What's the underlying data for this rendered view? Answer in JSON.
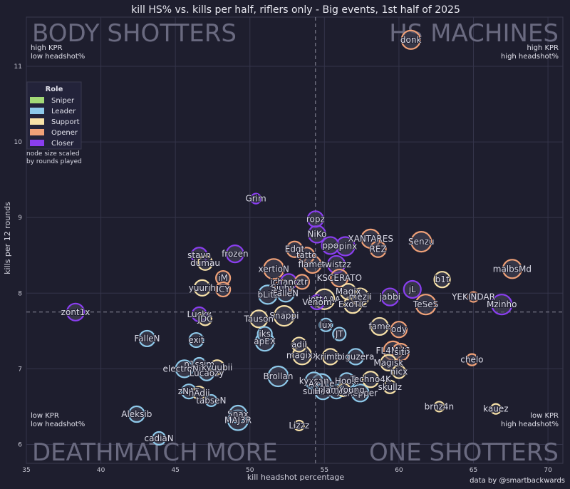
{
  "chart_data": {
    "type": "scatter",
    "title": "kill HS% vs. kills per half, riflers only - Big events, 1st half of 2025",
    "xlabel": "kill headshot percentage",
    "ylabel": "kills per 12 rounds",
    "xlim": [
      35,
      71
    ],
    "ylim": [
      5.75,
      11.65
    ],
    "xticks": [
      35,
      40,
      45,
      50,
      55,
      60,
      65,
      70
    ],
    "yticks": [
      6,
      7,
      8,
      9,
      10,
      11
    ],
    "mean_x": 54.4,
    "mean_y": 7.75,
    "grid": true,
    "quadrants": [
      {
        "big": "BODY SHOTTERS",
        "sub1": "high KPR",
        "sub2": "low headshot%"
      },
      {
        "big": "HS MACHINES",
        "sub1": "high KPR",
        "sub2": "high headshot%"
      },
      {
        "big": "DEATHMATCH MORE",
        "sub1": "low KPR",
        "sub2": "low headshot%"
      },
      {
        "big": "ONE SHOTTERS",
        "sub1": "low KPR",
        "sub2": "high headshot%"
      }
    ],
    "legend": {
      "title": "Role",
      "placement": "upper-left",
      "note1": "node size scaled",
      "note2": "by rounds played",
      "entries": [
        {
          "name": "Sniper",
          "color": "#a3d977"
        },
        {
          "name": "Leader",
          "color": "#8ec9ea"
        },
        {
          "name": "Support",
          "color": "#f7e1a8"
        },
        {
          "name": "Opener",
          "color": "#f0a178"
        },
        {
          "name": "Closer",
          "color": "#8a3ef0"
        }
      ]
    },
    "credit": "data by @smartbackwards",
    "points": [
      {
        "name": "donk",
        "x": 60.8,
        "y": 11.35,
        "role": "Opener",
        "size": 13
      },
      {
        "name": "Grim",
        "x": 50.4,
        "y": 9.25,
        "role": "Closer",
        "size": 7
      },
      {
        "name": "ropz",
        "x": 54.4,
        "y": 8.98,
        "role": "Closer",
        "size": 11
      },
      {
        "name": "NiKo",
        "x": 54.5,
        "y": 8.78,
        "role": "Closer",
        "size": 12
      },
      {
        "name": "XANTARES",
        "x": 58.1,
        "y": 8.72,
        "role": "Opener",
        "size": 13
      },
      {
        "name": "Senzu",
        "x": 61.5,
        "y": 8.68,
        "role": "Opener",
        "size": 14
      },
      {
        "name": "Spinx",
        "x": 56.4,
        "y": 8.62,
        "role": "Closer",
        "size": 13
      },
      {
        "name": "ppo",
        "x": 55.4,
        "y": 8.63,
        "role": "Closer",
        "size": 12
      },
      {
        "name": "REZ",
        "x": 58.6,
        "y": 8.58,
        "role": "Opener",
        "size": 11
      },
      {
        "name": "Edgt",
        "x": 53.0,
        "y": 8.58,
        "role": "Opener",
        "size": 11
      },
      {
        "name": "frozen",
        "x": 49.0,
        "y": 8.52,
        "role": "Closer",
        "size": 12
      },
      {
        "name": "stavn",
        "x": 46.6,
        "y": 8.5,
        "role": "Closer",
        "size": 11
      },
      {
        "name": "tatto",
        "x": 53.8,
        "y": 8.5,
        "role": "Opener",
        "size": 11
      },
      {
        "name": "dumau",
        "x": 47.0,
        "y": 8.4,
        "role": "Support",
        "size": 10
      },
      {
        "name": "flamez",
        "x": 54.2,
        "y": 8.38,
        "role": "Opener",
        "size": 12
      },
      {
        "name": "twistzz",
        "x": 55.8,
        "y": 8.38,
        "role": "Closer",
        "size": 12
      },
      {
        "name": "xertioN",
        "x": 51.6,
        "y": 8.32,
        "role": "Opener",
        "size": 14
      },
      {
        "name": "malbsMd",
        "x": 67.6,
        "y": 8.32,
        "role": "Opener",
        "size": 13
      },
      {
        "name": "KSCERATO",
        "x": 56.0,
        "y": 8.2,
        "role": "Opener",
        "size": 12
      },
      {
        "name": "iM",
        "x": 48.2,
        "y": 8.2,
        "role": "Opener",
        "size": 10
      },
      {
        "name": "b1t",
        "x": 62.9,
        "y": 8.18,
        "role": "Support",
        "size": 11
      },
      {
        "name": "jchancer",
        "x": 52.6,
        "y": 8.15,
        "role": "Closer",
        "size": 11
      },
      {
        "name": "ztr",
        "x": 53.5,
        "y": 8.15,
        "role": "Opener",
        "size": 10
      },
      {
        "name": "yuurih",
        "x": 46.8,
        "y": 8.07,
        "role": "Support",
        "size": 11
      },
      {
        "name": "ICY",
        "x": 48.2,
        "y": 8.05,
        "role": "Opener",
        "size": 10
      },
      {
        "name": "Siuhy",
        "x": 52.2,
        "y": 8.07,
        "role": "Opener",
        "size": 11
      },
      {
        "name": "jL",
        "x": 60.9,
        "y": 8.05,
        "role": "Closer",
        "size": 12
      },
      {
        "name": "Magix",
        "x": 56.6,
        "y": 8.02,
        "role": "Support",
        "size": 11
      },
      {
        "name": "bLitz",
        "x": 51.2,
        "y": 7.98,
        "role": "Leader",
        "size": 13
      },
      {
        "name": "jabbi",
        "x": 59.4,
        "y": 7.95,
        "role": "Closer",
        "size": 12
      },
      {
        "name": "YEKINDAR",
        "x": 65.0,
        "y": 7.95,
        "role": "Opener",
        "size": 7
      },
      {
        "name": "FalleN",
        "x": 52.4,
        "y": 8.0,
        "role": "Leader",
        "size": 12
      },
      {
        "name": "mezii",
        "x": 57.4,
        "y": 7.95,
        "role": "Support",
        "size": 12
      },
      {
        "name": "jottAAA",
        "x": 55.0,
        "y": 7.92,
        "role": "Support",
        "size": 14
      },
      {
        "name": "Mzinho",
        "x": 66.9,
        "y": 7.85,
        "role": "Closer",
        "size": 14
      },
      {
        "name": "TeSeS",
        "x": 61.8,
        "y": 7.85,
        "role": "Opener",
        "size": 14
      },
      {
        "name": "Venom",
        "x": 54.5,
        "y": 7.88,
        "role": "Closer",
        "size": 10
      },
      {
        "name": "ExoTiC",
        "x": 56.9,
        "y": 7.85,
        "role": "Support",
        "size": 12
      },
      {
        "name": "zont1x",
        "x": 38.3,
        "y": 7.75,
        "role": "Closer",
        "size": 12
      },
      {
        "name": "Lucky",
        "x": 46.6,
        "y": 7.72,
        "role": "Closer",
        "size": 10
      },
      {
        "name": "JDC",
        "x": 47.0,
        "y": 7.66,
        "role": "Support",
        "size": 9
      },
      {
        "name": "Snappi",
        "x": 52.3,
        "y": 7.7,
        "role": "Support",
        "size": 14
      },
      {
        "name": "Tauson",
        "x": 50.6,
        "y": 7.66,
        "role": "Support",
        "size": 12
      },
      {
        "name": "lux",
        "x": 55.1,
        "y": 7.58,
        "role": "Leader",
        "size": 9
      },
      {
        "name": "fame",
        "x": 58.7,
        "y": 7.56,
        "role": "Support",
        "size": 12
      },
      {
        "name": "ody",
        "x": 60.0,
        "y": 7.52,
        "role": "Opener",
        "size": 11
      },
      {
        "name": "iks",
        "x": 51.0,
        "y": 7.46,
        "role": "Leader",
        "size": 10
      },
      {
        "name": "JT",
        "x": 56.0,
        "y": 7.46,
        "role": "Leader",
        "size": 9
      },
      {
        "name": "FalleN2",
        "x": 43.1,
        "y": 7.4,
        "role": "Leader",
        "size": 11
      },
      {
        "name": "exit",
        "x": 46.4,
        "y": 7.38,
        "role": "Leader",
        "size": 10
      },
      {
        "name": "apEX",
        "x": 51.0,
        "y": 7.36,
        "role": "Leader",
        "size": 13
      },
      {
        "name": "aliStair",
        "x": 53.3,
        "y": 7.32,
        "role": "Support",
        "size": 10
      },
      {
        "name": "FL4MUS",
        "x": 59.6,
        "y": 7.24,
        "role": "Opener",
        "size": 13
      },
      {
        "name": "siti",
        "x": 60.1,
        "y": 7.22,
        "role": "Opener",
        "size": 12
      },
      {
        "name": "magixx",
        "x": 53.5,
        "y": 7.18,
        "role": "Support",
        "size": 13
      },
      {
        "name": "krimbo",
        "x": 55.4,
        "y": 7.16,
        "role": "Support",
        "size": 11
      },
      {
        "name": "biguzera",
        "x": 57.1,
        "y": 7.16,
        "role": "Leader",
        "size": 11
      },
      {
        "name": "chelo",
        "x": 64.9,
        "y": 7.12,
        "role": "Opener",
        "size": 8
      },
      {
        "name": "Magisk",
        "x": 59.3,
        "y": 7.08,
        "role": "Support",
        "size": 11
      },
      {
        "name": "n1ssim",
        "x": 46.6,
        "y": 7.06,
        "role": "Leader",
        "size": 9
      },
      {
        "name": "electroNic",
        "x": 45.6,
        "y": 7.0,
        "role": "Leader",
        "size": 12
      },
      {
        "name": "kyuubii",
        "x": 47.8,
        "y": 7.02,
        "role": "Support",
        "size": 10
      },
      {
        "name": "nicx",
        "x": 60.0,
        "y": 6.96,
        "role": "Support",
        "size": 9
      },
      {
        "name": "Lucaozy",
        "x": 47.1,
        "y": 6.94,
        "role": "Leader",
        "size": 10
      },
      {
        "name": "Brollan",
        "x": 51.9,
        "y": 6.9,
        "role": "Leader",
        "size": 14
      },
      {
        "name": "kyxsan",
        "x": 54.3,
        "y": 6.84,
        "role": "Leader",
        "size": 12
      },
      {
        "name": "Hooxi",
        "x": 56.5,
        "y": 6.84,
        "role": "Leader",
        "size": 11
      },
      {
        "name": "Techno4K",
        "x": 58.1,
        "y": 6.86,
        "role": "Support",
        "size": 11
      },
      {
        "name": "Ax1Le",
        "x": 54.8,
        "y": 6.8,
        "role": "Leader",
        "size": 14
      },
      {
        "name": "skullz",
        "x": 59.4,
        "y": 6.76,
        "role": "Support",
        "size": 9
      },
      {
        "name": "zNAF",
        "x": 45.9,
        "y": 6.7,
        "role": "Leader",
        "size": 10
      },
      {
        "name": "sunPayus",
        "x": 54.9,
        "y": 6.7,
        "role": "Leader",
        "size": 11
      },
      {
        "name": "chopper",
        "x": 57.4,
        "y": 6.68,
        "role": "Leader",
        "size": 12
      },
      {
        "name": "hAdji",
        "x": 46.6,
        "y": 6.68,
        "role": "Support",
        "size": 9
      },
      {
        "name": "HeavyGod",
        "x": 55.8,
        "y": 6.7,
        "role": "Leader",
        "size": 10
      },
      {
        "name": "JamYoung",
        "x": 56.3,
        "y": 6.72,
        "role": "Support",
        "size": 9
      },
      {
        "name": "tabseN",
        "x": 47.4,
        "y": 6.58,
        "role": "Leader",
        "size": 8
      },
      {
        "name": "brnz4n",
        "x": 62.7,
        "y": 6.5,
        "role": "Support",
        "size": 7
      },
      {
        "name": "kauez",
        "x": 66.5,
        "y": 6.47,
        "role": "Support",
        "size": 7
      },
      {
        "name": "Aleksib",
        "x": 42.4,
        "y": 6.4,
        "role": "Leader",
        "size": 11
      },
      {
        "name": "Snax",
        "x": 49.2,
        "y": 6.4,
        "role": "Leader",
        "size": 12
      },
      {
        "name": "MAJ3R",
        "x": 49.2,
        "y": 6.32,
        "role": "Leader",
        "size": 14
      },
      {
        "name": "Lizzz",
        "x": 53.3,
        "y": 6.25,
        "role": "Support",
        "size": 7
      },
      {
        "name": "cadiaN",
        "x": 43.9,
        "y": 6.08,
        "role": "Leader",
        "size": 9
      }
    ],
    "label_overrides": {
      "FalleN2": "FalleN",
      "ICY": "ICY",
      "aliStair": "adil",
      "HeavyGod": "HeavyGod",
      "JamYoung": "JamYoung",
      "ztr": "ztr",
      "Siuhy": "Siuhy",
      "Magix": "Magix",
      "krimbo": "krimbo"
    }
  }
}
